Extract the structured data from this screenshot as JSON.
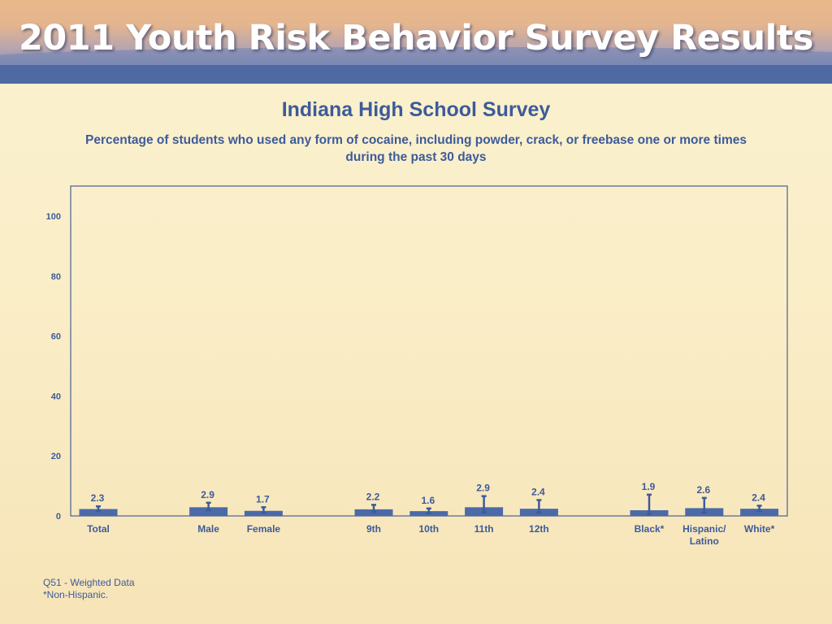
{
  "banner": {
    "title": "2011 Youth Risk Behavior Survey Results"
  },
  "subtitle": "Indiana High School Survey",
  "caption": "Percentage of students who used any form of cocaine, including powder, crack, or freebase one or more times during the past 30 days",
  "footnotes": [
    "Q51 - Weighted Data",
    "*Non-Hispanic."
  ],
  "colors": {
    "bar": "#4a6aa8",
    "text": "#3d5b9a",
    "axis": "#4a5f94"
  },
  "chart_data": {
    "type": "bar",
    "categories": [
      {
        "label": [
          "Total"
        ],
        "group": 0,
        "value": 2.3,
        "err": [
          1.6,
          3.2
        ]
      },
      {
        "label": [
          "Male"
        ],
        "group": 1,
        "value": 2.9,
        "err": [
          1.9,
          4.4
        ]
      },
      {
        "label": [
          "Female"
        ],
        "group": 1,
        "value": 1.7,
        "err": [
          1.0,
          2.9
        ]
      },
      {
        "label": [
          "9th"
        ],
        "group": 2,
        "value": 2.2,
        "err": [
          1.3,
          3.7
        ]
      },
      {
        "label": [
          "10th"
        ],
        "group": 2,
        "value": 1.6,
        "err": [
          0.9,
          2.5
        ]
      },
      {
        "label": [
          "11th"
        ],
        "group": 2,
        "value": 2.9,
        "err": [
          1.2,
          6.6
        ]
      },
      {
        "label": [
          "12th"
        ],
        "group": 2,
        "value": 2.4,
        "err": [
          1.1,
          5.3
        ]
      },
      {
        "label": [
          "Black*"
        ],
        "group": 3,
        "value": 1.9,
        "err": [
          0.5,
          7.1
        ]
      },
      {
        "label": [
          "Hispanic/",
          "Latino"
        ],
        "group": 3,
        "value": 2.6,
        "err": [
          1.1,
          6.0
        ]
      },
      {
        "label": [
          "White*"
        ],
        "group": 3,
        "value": 2.4,
        "err": [
          1.6,
          3.4
        ]
      }
    ],
    "yticks": [
      0,
      20,
      40,
      60,
      80,
      100
    ],
    "ylim": [
      0,
      110
    ],
    "grid": false,
    "legend": "none"
  }
}
